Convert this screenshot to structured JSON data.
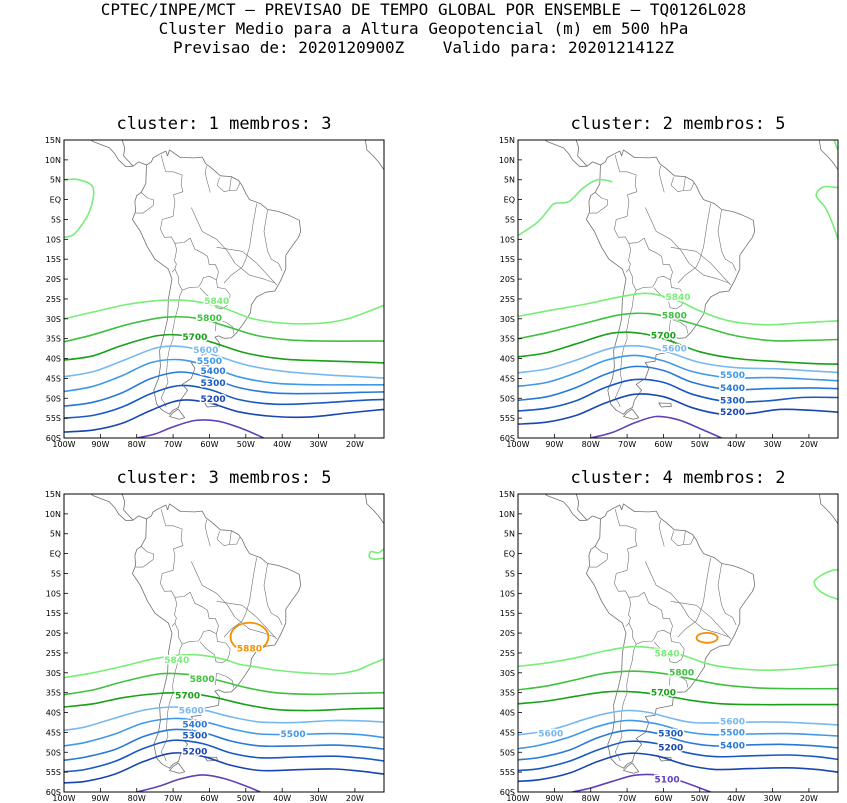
{
  "header": {
    "line1": "CPTEC/INPE/MCT – PREVISAO DE TEMPO GLOBAL POR ENSEMBLE – TQ0126L028",
    "line2": "Cluster Medio para a Altura Geopotencial (m) em 500 hPa",
    "line3": "Previsao de: 2020120900Z    Valido para: 2020121412Z"
  },
  "axes": {
    "lat_labels": [
      "15N",
      "10N",
      "5N",
      "EQ",
      "5S",
      "10S",
      "15S",
      "20S",
      "25S",
      "30S",
      "35S",
      "40S",
      "45S",
      "50S",
      "55S",
      "60S"
    ],
    "lon_labels": [
      "100W",
      "90W",
      "80W",
      "70W",
      "60W",
      "50W",
      "40W",
      "30W",
      "20W"
    ]
  },
  "colors": {
    "c5880": "#f09000",
    "c5840": "#78ee78",
    "c5800": "#40c040",
    "c5700": "#18a018",
    "c5600": "#78b8f0",
    "c5500": "#4098e8",
    "c5400": "#2878d8",
    "c5300": "#1858c0",
    "c5200": "#1846b0",
    "c5100": "#6040b8",
    "coast": "#707070"
  },
  "panels": [
    {
      "title": "cluster: 1   membros: 3",
      "labels": [
        {
          "text": "5840",
          "level": "c5840",
          "lon": -58,
          "lat": -25.5
        },
        {
          "text": "5800",
          "level": "c5800",
          "lon": -60,
          "lat": -29.8
        },
        {
          "text": "5700",
          "level": "c5700",
          "lon": -64,
          "lat": -34.6
        },
        {
          "text": "5600",
          "level": "c5600",
          "lon": -61,
          "lat": -37.8
        },
        {
          "text": "5500",
          "level": "c5500",
          "lon": -60,
          "lat": -40.6
        },
        {
          "text": "5400",
          "level": "c5400",
          "lon": -59,
          "lat": -43.2
        },
        {
          "text": "5300",
          "level": "c5300",
          "lon": -59,
          "lat": -46.2
        },
        {
          "text": "5200",
          "level": "c5200",
          "lon": -59,
          "lat": -50.2
        }
      ]
    },
    {
      "title": "cluster: 2   membros: 5",
      "labels": [
        {
          "text": "5840",
          "level": "c5840",
          "lon": -56,
          "lat": -24.5
        },
        {
          "text": "5800",
          "level": "c5800",
          "lon": -57,
          "lat": -29.2
        },
        {
          "text": "5700",
          "level": "c5700",
          "lon": -60,
          "lat": -34.2
        },
        {
          "text": "5600",
          "level": "c5600",
          "lon": -57,
          "lat": -37.5
        },
        {
          "text": "5500",
          "level": "c5500",
          "lon": -41,
          "lat": -44.2
        },
        {
          "text": "5400",
          "level": "c5400",
          "lon": -41,
          "lat": -47.4
        },
        {
          "text": "5300",
          "level": "c5300",
          "lon": -41,
          "lat": -50.5
        },
        {
          "text": "5200",
          "level": "c5200",
          "lon": -41,
          "lat": -53.5
        }
      ]
    },
    {
      "title": "cluster: 3   membros: 5",
      "labels": [
        {
          "text": "5880",
          "level": "c5880",
          "lon": -49,
          "lat": -23.9
        },
        {
          "text": "5840",
          "level": "c5840",
          "lon": -69,
          "lat": -26.8
        },
        {
          "text": "5800",
          "level": "c5800",
          "lon": -62,
          "lat": -31.5
        },
        {
          "text": "5700",
          "level": "c5700",
          "lon": -66,
          "lat": -35.7
        },
        {
          "text": "5600",
          "level": "c5600",
          "lon": -65,
          "lat": -39.5
        },
        {
          "text": "5500",
          "level": "c5500",
          "lon": -37,
          "lat": -45.4
        },
        {
          "text": "5400",
          "level": "c5400",
          "lon": -64,
          "lat": -43.0
        },
        {
          "text": "5300",
          "level": "c5300",
          "lon": -64,
          "lat": -45.8
        },
        {
          "text": "5200",
          "level": "c5200",
          "lon": -64,
          "lat": -49.8
        }
      ]
    },
    {
      "title": "cluster: 4   membros: 2",
      "labels": [
        {
          "text": "5840",
          "level": "c5840",
          "lon": -59,
          "lat": -25.1
        },
        {
          "text": "5800",
          "level": "c5800",
          "lon": -55,
          "lat": -29.9
        },
        {
          "text": "5700",
          "level": "c5700",
          "lon": -60,
          "lat": -34.9
        },
        {
          "text": "5600",
          "level": "c5600",
          "lon": -91,
          "lat": -45.3
        },
        {
          "text": "5600",
          "level": "c5600",
          "lon": -41,
          "lat": -42.3
        },
        {
          "text": "5500",
          "level": "c5500",
          "lon": -41,
          "lat": -45.0
        },
        {
          "text": "5400",
          "level": "c5400",
          "lon": -41,
          "lat": -48.3
        },
        {
          "text": "5300",
          "level": "c5300",
          "lon": -58,
          "lat": -45.3
        },
        {
          "text": "5200",
          "level": "c5200",
          "lon": -58,
          "lat": -48.8
        },
        {
          "text": "5100",
          "level": "c5100",
          "lon": -59,
          "lat": -56.8
        }
      ]
    }
  ]
}
